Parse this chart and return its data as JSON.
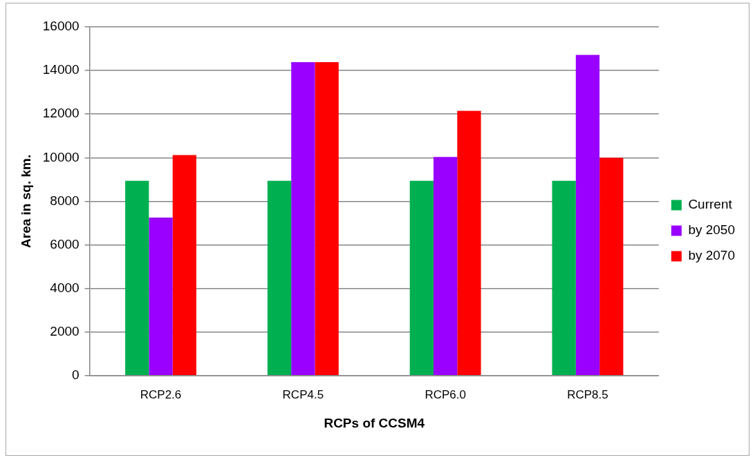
{
  "chart_data": {
    "type": "bar",
    "xlabel": "RCPs of CCSM4",
    "ylabel": "Area in sq. km.",
    "categories": [
      "RCP2.6",
      "RCP4.5",
      "RCP6.0",
      "RCP8.5"
    ],
    "series": [
      {
        "name": "Current",
        "color": "#00b050",
        "values": [
          8940,
          8940,
          8940,
          8940
        ]
      },
      {
        "name": "by 2050",
        "color": "#9900ff",
        "values": [
          7250,
          14380,
          10030,
          14720
        ]
      },
      {
        "name": "by 2070",
        "color": "#ff0000",
        "values": [
          10120,
          14380,
          12150,
          9990
        ]
      }
    ],
    "ylim": [
      0,
      16000
    ],
    "yticks": [
      0,
      2000,
      4000,
      6000,
      8000,
      10000,
      12000,
      14000,
      16000
    ],
    "grid": "y",
    "legend": "right"
  }
}
